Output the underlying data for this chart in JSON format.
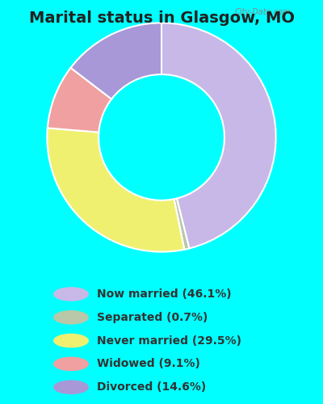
{
  "title": "Marital status in Glasgow, MO",
  "title_fontsize": 14,
  "title_color": "#222222",
  "slices": [
    {
      "label": "Now married (46.1%)",
      "value": 46.1,
      "color": "#c8b8e8"
    },
    {
      "label": "Separated (0.7%)",
      "value": 0.7,
      "color": "#b8c8a8"
    },
    {
      "label": "Never married (29.5%)",
      "value": 29.5,
      "color": "#f0f070"
    },
    {
      "label": "Widowed (9.1%)",
      "value": 9.1,
      "color": "#f0a0a0"
    },
    {
      "label": "Divorced (14.6%)",
      "value": 14.6,
      "color": "#a898d8"
    }
  ],
  "legend_colors": [
    "#c8b8e8",
    "#b8c8a8",
    "#f0f070",
    "#f0a0a0",
    "#a898d8"
  ],
  "legend_labels": [
    "Now married (46.1%)",
    "Separated (0.7%)",
    "Never married (29.5%)",
    "Widowed (9.1%)",
    "Divorced (14.6%)"
  ],
  "legend_fontsize": 10,
  "legend_text_color": "#333333",
  "figsize": [
    4.0,
    5.0
  ],
  "dpi": 100,
  "chart_bg_color": "#d8f0d8",
  "outer_bg_color": "#00FFFF"
}
